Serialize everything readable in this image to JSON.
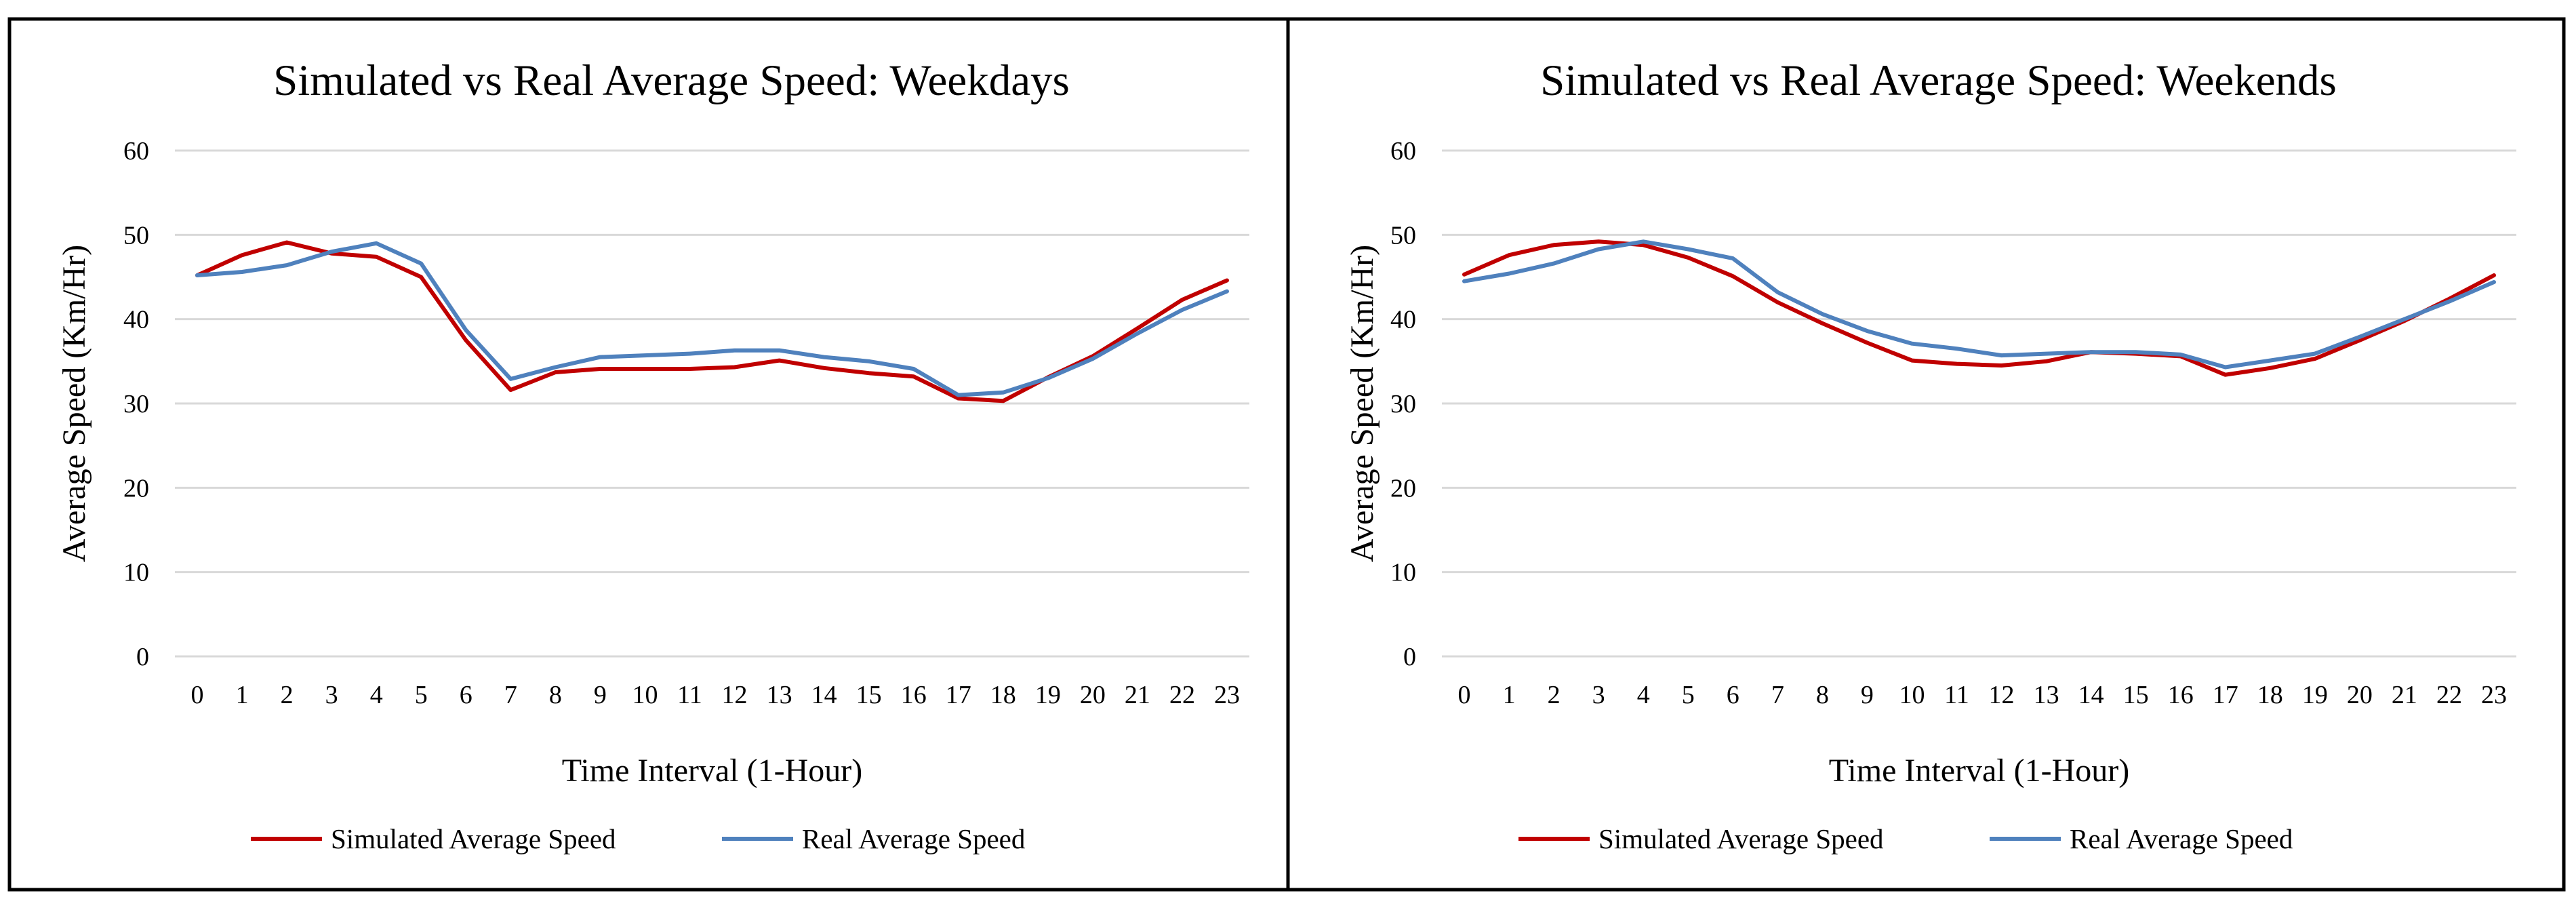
{
  "colors": {
    "simulated": "#C00000",
    "real": "#4F81BD",
    "grid": "#D9D9D9",
    "border": "#000000",
    "background": "#FFFFFF"
  },
  "chart_data": [
    {
      "type": "line",
      "title": "Simulated vs Real Average Speed: Weekdays",
      "xlabel": "Time Interval (1-Hour)",
      "ylabel": "Average Speed (Km/Hr)",
      "ylim": [
        0,
        60
      ],
      "yticks": [
        "0",
        "10",
        "20",
        "30",
        "40",
        "50",
        "60"
      ],
      "grid": true,
      "legend_position": "bottom",
      "categories": [
        "0",
        "1",
        "2",
        "3",
        "4",
        "5",
        "6",
        "7",
        "8",
        "9",
        "10",
        "11",
        "12",
        "13",
        "14",
        "15",
        "16",
        "17",
        "18",
        "19",
        "20",
        "21",
        "22",
        "23"
      ],
      "series": [
        {
          "name": "Simulated Average Speed",
          "color": "#C00000",
          "values": [
            45.2,
            47.6,
            49.1,
            47.8,
            47.4,
            45.0,
            37.5,
            31.6,
            33.7,
            34.1,
            34.1,
            34.1,
            34.3,
            35.1,
            34.2,
            33.6,
            33.2,
            30.6,
            30.3,
            33.1,
            35.6,
            38.9,
            42.3,
            44.6
          ]
        },
        {
          "name": "Real Average Speed",
          "color": "#4F81BD",
          "values": [
            45.2,
            45.6,
            46.4,
            48.0,
            49.0,
            46.6,
            38.7,
            32.9,
            34.3,
            35.5,
            35.7,
            35.9,
            36.3,
            36.3,
            35.5,
            35.0,
            34.1,
            31.0,
            31.3,
            33.0,
            35.3,
            38.3,
            41.1,
            43.3
          ]
        }
      ]
    },
    {
      "type": "line",
      "title": "Simulated vs Real Average Speed: Weekends",
      "xlabel": "Time Interval (1-Hour)",
      "ylabel": "Average Speed (Km/Hr)",
      "ylim": [
        0,
        60
      ],
      "yticks": [
        "0",
        "10",
        "20",
        "30",
        "40",
        "50",
        "60"
      ],
      "grid": true,
      "legend_position": "bottom",
      "categories": [
        "0",
        "1",
        "2",
        "3",
        "4",
        "5",
        "6",
        "7",
        "8",
        "9",
        "10",
        "11",
        "12",
        "13",
        "14",
        "15",
        "16",
        "17",
        "18",
        "19",
        "20",
        "21",
        "22",
        "23"
      ],
      "series": [
        {
          "name": "Simulated Average Speed",
          "color": "#C00000",
          "values": [
            45.3,
            47.6,
            48.8,
            49.2,
            48.8,
            47.3,
            45.1,
            42.0,
            39.5,
            37.2,
            35.1,
            34.7,
            34.5,
            35.0,
            36.1,
            35.9,
            35.6,
            33.4,
            34.2,
            35.3,
            37.5,
            39.8,
            42.4,
            45.2
          ]
        },
        {
          "name": "Real Average Speed",
          "color": "#4F81BD",
          "values": [
            44.5,
            45.4,
            46.6,
            48.3,
            49.2,
            48.3,
            47.2,
            43.2,
            40.6,
            38.6,
            37.1,
            36.5,
            35.7,
            35.9,
            36.1,
            36.1,
            35.8,
            34.3,
            35.1,
            35.9,
            37.9,
            40.0,
            42.1,
            44.4
          ]
        }
      ]
    }
  ]
}
